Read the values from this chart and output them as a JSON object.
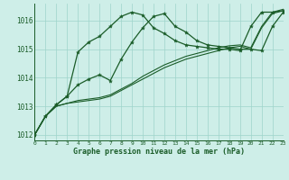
{
  "background_color": "#ceeee8",
  "grid_color": "#9ed4ca",
  "line_color": "#1a5c28",
  "title": "Graphe pression niveau de la mer (hPa)",
  "xlim": [
    0,
    23
  ],
  "ylim": [
    1011.8,
    1016.6
  ],
  "yticks": [
    1012,
    1013,
    1014,
    1015,
    1016
  ],
  "xticks": [
    0,
    1,
    2,
    3,
    4,
    5,
    6,
    7,
    8,
    9,
    10,
    11,
    12,
    13,
    14,
    15,
    16,
    17,
    18,
    19,
    20,
    21,
    22,
    23
  ],
  "series": [
    {
      "data": [
        1012.0,
        1012.65,
        1013.0,
        1013.1,
        1013.15,
        1013.2,
        1013.25,
        1013.35,
        1013.55,
        1013.75,
        1013.95,
        1014.15,
        1014.35,
        1014.5,
        1014.65,
        1014.75,
        1014.85,
        1014.95,
        1015.05,
        1015.1,
        1015.0,
        1015.75,
        1016.25,
        1016.35
      ],
      "marker": false,
      "linewidth": 0.8
    },
    {
      "data": [
        1012.0,
        1012.65,
        1013.0,
        1013.1,
        1013.2,
        1013.25,
        1013.3,
        1013.4,
        1013.6,
        1013.8,
        1014.05,
        1014.25,
        1014.45,
        1014.6,
        1014.75,
        1014.85,
        1014.95,
        1015.05,
        1015.12,
        1015.15,
        1015.05,
        1015.8,
        1016.3,
        1016.4
      ],
      "marker": false,
      "linewidth": 0.8
    },
    {
      "data": [
        1012.0,
        1012.65,
        1013.05,
        1013.35,
        1013.75,
        1013.95,
        1014.1,
        1013.9,
        1014.65,
        1015.25,
        1015.75,
        1016.15,
        1016.25,
        1015.8,
        1015.6,
        1015.3,
        1015.15,
        1015.1,
        1015.05,
        1015.0,
        1015.0,
        1014.95,
        1015.8,
        1016.3
      ],
      "marker": true,
      "linewidth": 0.9
    },
    {
      "data": [
        1012.0,
        1012.65,
        1013.05,
        1013.35,
        1014.9,
        1015.25,
        1015.45,
        1015.8,
        1016.15,
        1016.3,
        1016.2,
        1015.75,
        1015.55,
        1015.3,
        1015.15,
        1015.1,
        1015.05,
        1015.0,
        1015.0,
        1014.95,
        1015.8,
        1016.3,
        1016.3,
        1016.35
      ],
      "marker": true,
      "linewidth": 0.9
    }
  ]
}
